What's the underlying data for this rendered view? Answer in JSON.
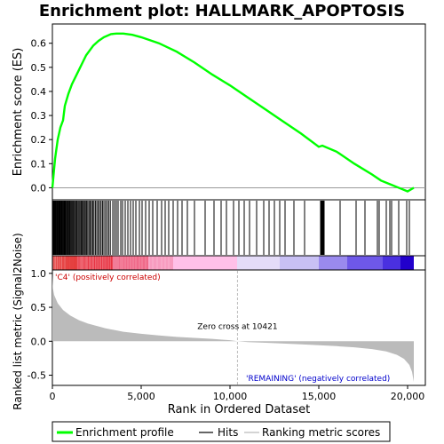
{
  "chart_data": {
    "type": "line",
    "title": "Enrichment plot: HALLMARK_APOPTOSIS",
    "colors": {
      "es_line": "#00ff00",
      "hit_line": "#000000",
      "metric_fill": "#bbbbbb",
      "zero_cross_line": "#bbbbbb",
      "pos_label": "#cc0000",
      "neg_label": "#0000cc",
      "band_red": "#dd0000",
      "band_pink": "#ffb6e0",
      "band_blue": "#5533ee"
    },
    "es_panel": {
      "ylabel": "Enrichment score (ES)",
      "ylim": [
        -0.05,
        0.68
      ],
      "yticks": [
        "0.0",
        "0.1",
        "0.2",
        "0.3",
        "0.4",
        "0.5",
        "0.6"
      ],
      "ytick_values": [
        0.0,
        0.1,
        0.2,
        0.3,
        0.4,
        0.5,
        0.6
      ],
      "curve": [
        [
          0,
          0.0
        ],
        [
          150,
          0.12
        ],
        [
          300,
          0.2
        ],
        [
          450,
          0.25
        ],
        [
          600,
          0.28
        ],
        [
          700,
          0.34
        ],
        [
          900,
          0.39
        ],
        [
          1100,
          0.43
        ],
        [
          1300,
          0.46
        ],
        [
          1500,
          0.49
        ],
        [
          1700,
          0.52
        ],
        [
          1900,
          0.55
        ],
        [
          2100,
          0.57
        ],
        [
          2300,
          0.59
        ],
        [
          2600,
          0.61
        ],
        [
          2900,
          0.625
        ],
        [
          3300,
          0.638
        ],
        [
          3600,
          0.64
        ],
        [
          4000,
          0.64
        ],
        [
          4500,
          0.635
        ],
        [
          5000,
          0.625
        ],
        [
          6000,
          0.6
        ],
        [
          7000,
          0.565
        ],
        [
          8000,
          0.52
        ],
        [
          9000,
          0.47
        ],
        [
          10000,
          0.425
        ],
        [
          11000,
          0.375
        ],
        [
          12000,
          0.325
        ],
        [
          13000,
          0.275
        ],
        [
          14000,
          0.225
        ],
        [
          15000,
          0.17
        ],
        [
          15200,
          0.175
        ],
        [
          16000,
          0.15
        ],
        [
          17000,
          0.1
        ],
        [
          18000,
          0.055
        ],
        [
          18500,
          0.03
        ],
        [
          19000,
          0.015
        ],
        [
          19500,
          0.0
        ],
        [
          20000,
          -0.015
        ],
        [
          20350,
          0.0
        ]
      ]
    },
    "hits_panel": {
      "hit_positions": [
        30,
        60,
        100,
        130,
        160,
        190,
        230,
        260,
        290,
        330,
        360,
        400,
        430,
        470,
        510,
        540,
        580,
        620,
        660,
        700,
        740,
        790,
        830,
        870,
        920,
        970,
        1010,
        1060,
        1110,
        1160,
        1210,
        1260,
        1320,
        1380,
        1440,
        1500,
        1560,
        1620,
        1680,
        1740,
        1800,
        1860,
        1920,
        1990,
        2060,
        2130,
        2200,
        2270,
        2340,
        2420,
        2500,
        2580,
        2660,
        2740,
        2820,
        2900,
        2990,
        3080,
        3170,
        3260,
        3400,
        3500,
        3600,
        3700,
        3850,
        3950,
        4100,
        4250,
        4400,
        4550,
        4700,
        4900,
        5050,
        5250,
        5450,
        5650,
        5900,
        6150,
        6350,
        6550,
        6800,
        7050,
        7300,
        7600,
        8000,
        8600,
        9100,
        9500,
        9800,
        10200,
        10500,
        10800,
        11100,
        11500,
        11900,
        12200,
        12500,
        12800,
        13100,
        13600,
        14200,
        15100,
        15150,
        15200,
        15250,
        15300,
        16200,
        17100,
        17600,
        18300,
        18400,
        18800,
        19000,
        19100,
        19500,
        19950,
        20100
      ],
      "rank_max": 20350
    },
    "rank_band": {
      "segments": [
        {
          "from": 0,
          "to": 1400,
          "color": "#dd0000"
        },
        {
          "from": 1400,
          "to": 3400,
          "color": "#e83040"
        },
        {
          "from": 3400,
          "to": 5400,
          "color": "#f06a8a"
        },
        {
          "from": 5400,
          "to": 6800,
          "color": "#f79cc0"
        },
        {
          "from": 6800,
          "to": 10400,
          "color": "#ffc0e8"
        },
        {
          "from": 10400,
          "to": 12800,
          "color": "#e4dcf8"
        },
        {
          "from": 12800,
          "to": 15000,
          "color": "#c8c0f4"
        },
        {
          "from": 15000,
          "to": 16600,
          "color": "#9a8aee"
        },
        {
          "from": 16600,
          "to": 18600,
          "color": "#6e58e8"
        },
        {
          "from": 18600,
          "to": 19600,
          "color": "#4a30e0"
        },
        {
          "from": 19600,
          "to": 20350,
          "color": "#2200cc"
        }
      ]
    },
    "metric_panel": {
      "ylabel": "Ranked list metric (Signal2Noise)",
      "xlabel": "Rank in Ordered Dataset",
      "ylim": [
        -0.65,
        1.05
      ],
      "yticks": [
        "-0.5",
        "0.0",
        "0.5",
        "1.0"
      ],
      "ytick_values": [
        -0.5,
        0.0,
        0.5,
        1.0
      ],
      "xlim": [
        0,
        21000
      ],
      "xticks": [
        "0",
        "5,000",
        "10,000",
        "15,000",
        "20,000"
      ],
      "xtick_values": [
        0,
        5000,
        10000,
        15000,
        20000
      ],
      "curve": [
        [
          0,
          0.98
        ],
        [
          30,
          0.78
        ],
        [
          100,
          0.68
        ],
        [
          300,
          0.56
        ],
        [
          600,
          0.46
        ],
        [
          1000,
          0.38
        ],
        [
          1500,
          0.31
        ],
        [
          2000,
          0.26
        ],
        [
          3000,
          0.19
        ],
        [
          4000,
          0.14
        ],
        [
          5000,
          0.11
        ],
        [
          6000,
          0.085
        ],
        [
          7000,
          0.065
        ],
        [
          8000,
          0.05
        ],
        [
          9000,
          0.035
        ],
        [
          10000,
          0.015
        ],
        [
          10421,
          0.0
        ],
        [
          11000,
          -0.012
        ],
        [
          12000,
          -0.022
        ],
        [
          13000,
          -0.033
        ],
        [
          14000,
          -0.045
        ],
        [
          15000,
          -0.058
        ],
        [
          16000,
          -0.072
        ],
        [
          17000,
          -0.09
        ],
        [
          18000,
          -0.115
        ],
        [
          18800,
          -0.15
        ],
        [
          19400,
          -0.2
        ],
        [
          19800,
          -0.26
        ],
        [
          20100,
          -0.35
        ],
        [
          20250,
          -0.45
        ],
        [
          20350,
          -0.6
        ]
      ],
      "zero_cross_rank": 10421,
      "zero_cross_label": "Zero cross at 10421",
      "pos_label": "'C4' (positively correlated)",
      "neg_label": "'REMAINING' (negatively correlated)"
    },
    "legend": [
      {
        "label": "Enrichment profile",
        "color": "#00ff00"
      },
      {
        "label": "Hits",
        "color": "#000000"
      },
      {
        "label": "Ranking metric scores",
        "color": "#bbbbbb"
      }
    ]
  }
}
